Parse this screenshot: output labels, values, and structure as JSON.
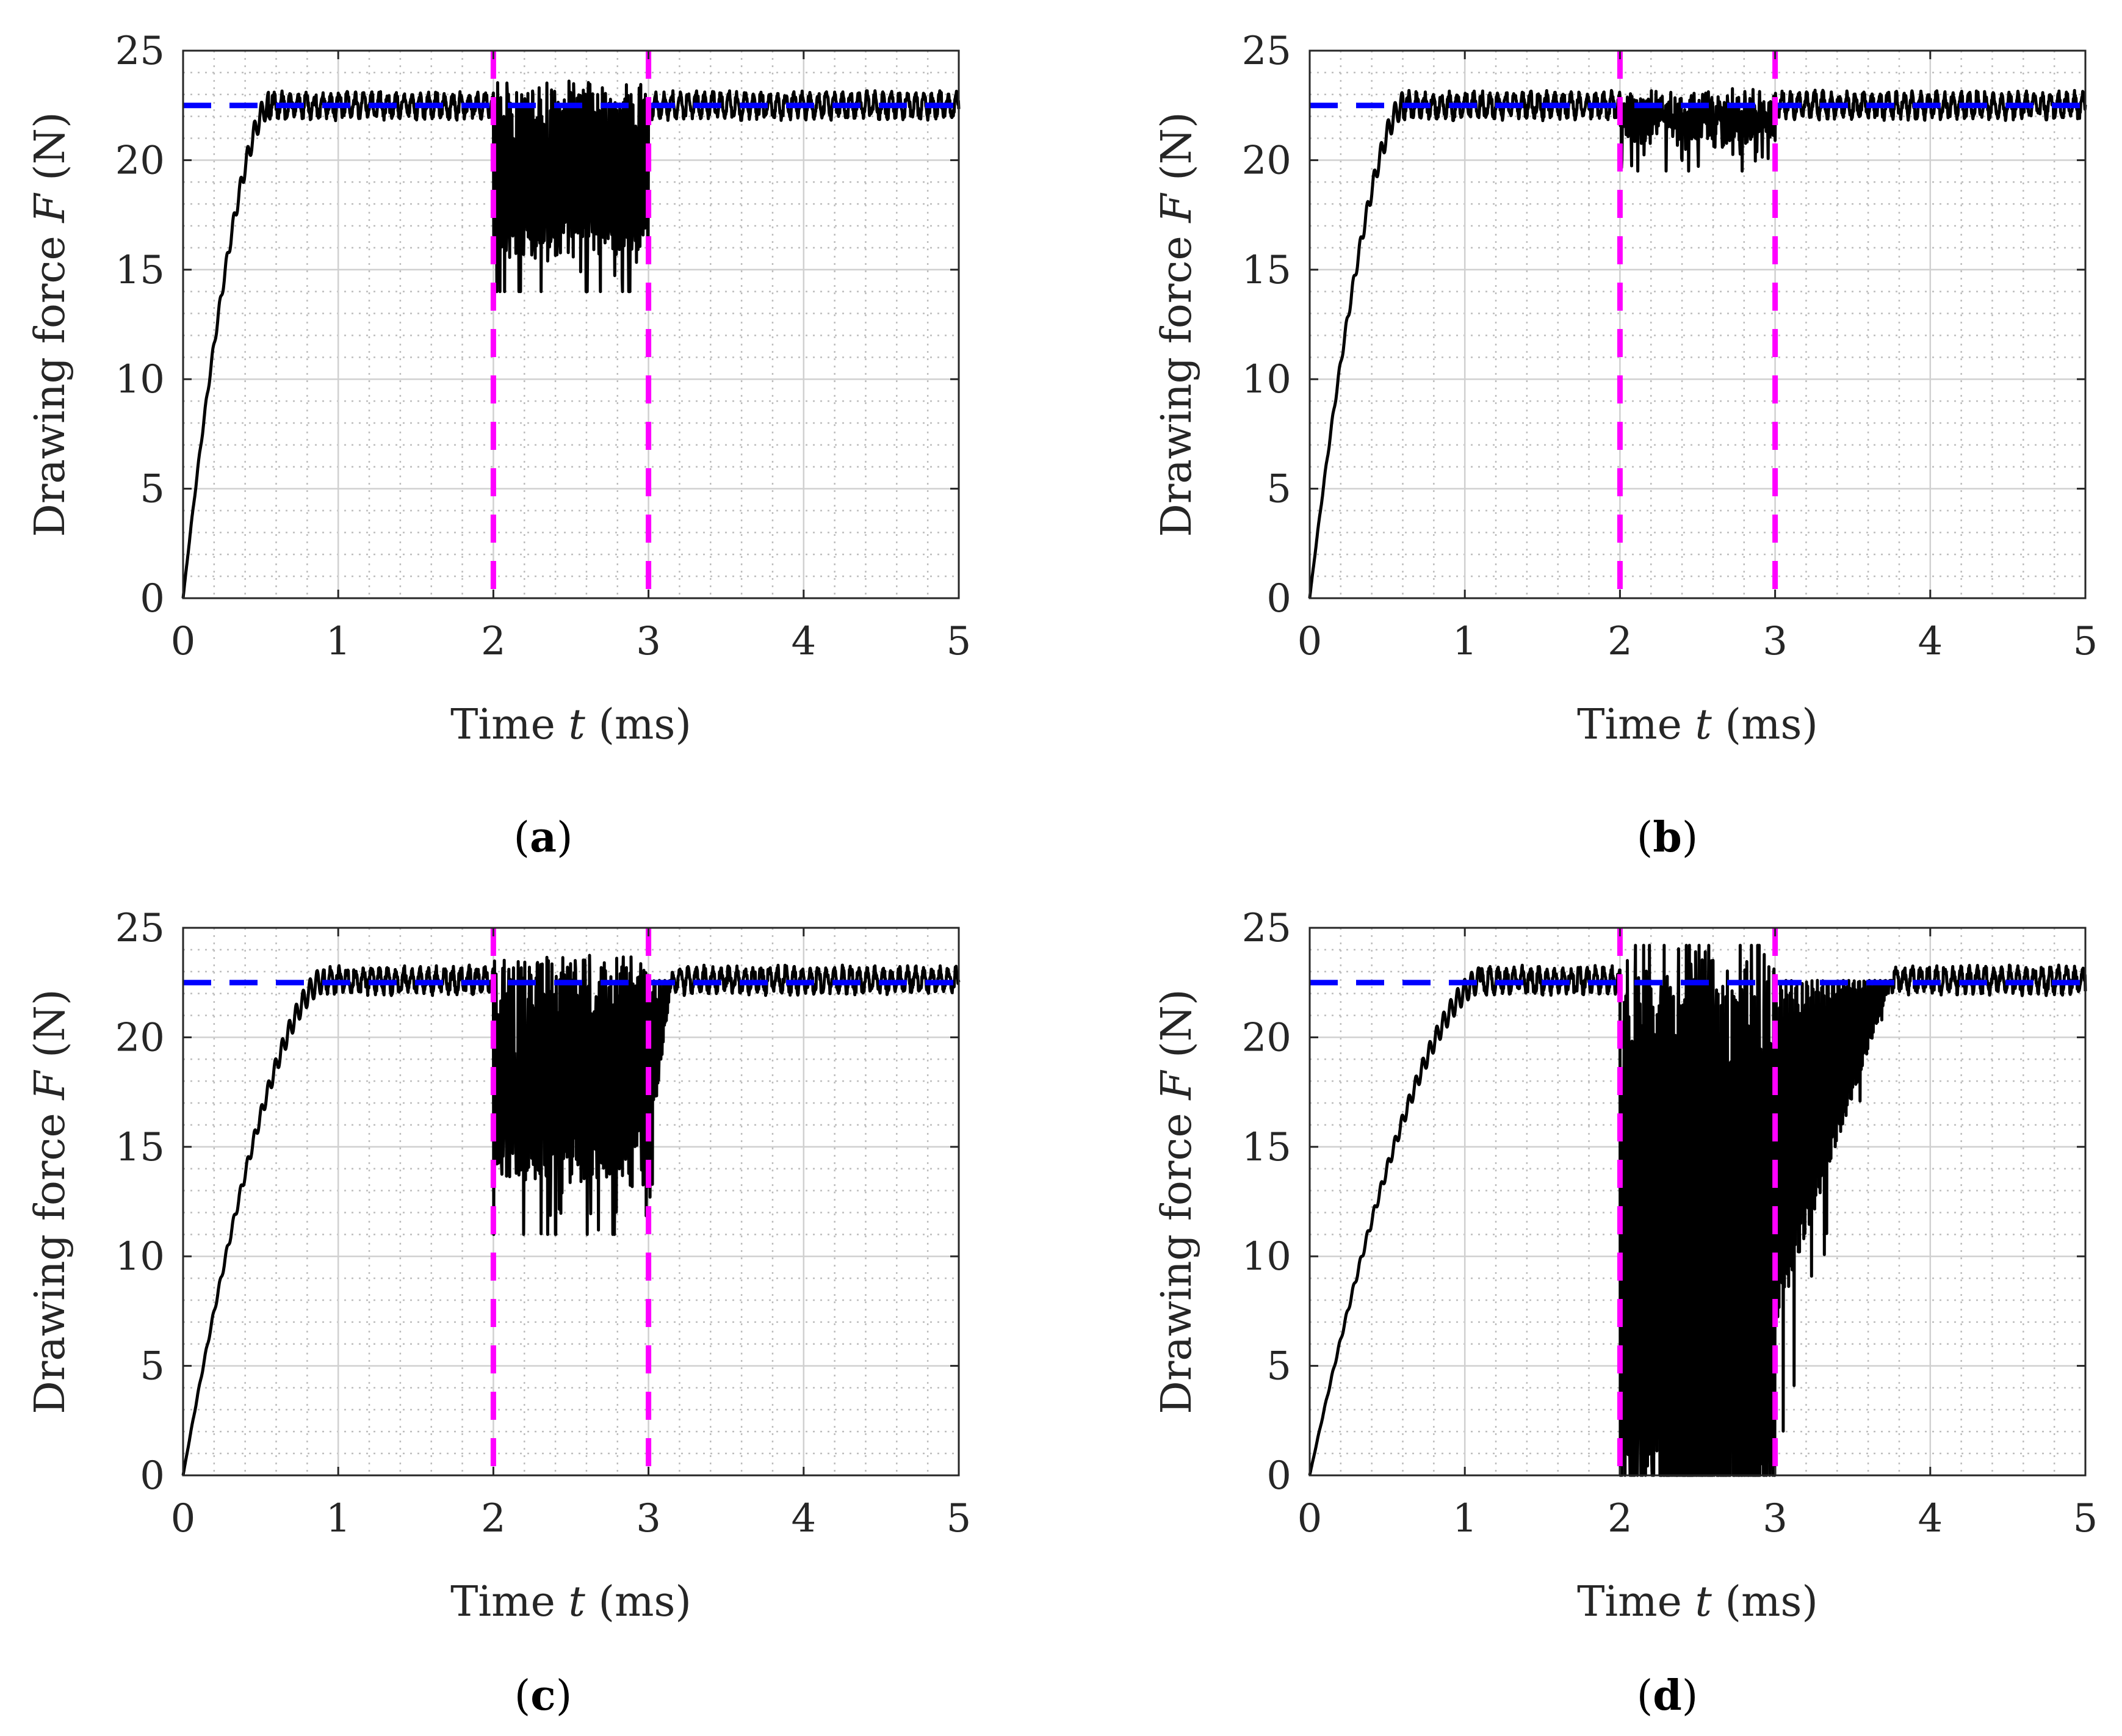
{
  "figure": {
    "colors": {
      "signal": "#000000",
      "reference": "#0000ff",
      "window": "#ff00ff",
      "grid_major": "#d0d0d0",
      "grid_minor": "#bdbdbd",
      "axes": "#262626"
    }
  },
  "chart_data": [
    {
      "id": "a",
      "type": "line",
      "caption_letter": "a",
      "xlabel_prefix": "Time ",
      "xlabel_var": "t",
      "xlabel_unit": " (ms)",
      "ylabel_prefix": "Drawing force ",
      "ylabel_var": "F",
      "ylabel_unit": " (N)",
      "xlim": [
        0,
        5
      ],
      "ylim": [
        0,
        25
      ],
      "x_ticks": [
        "0",
        "1",
        "2",
        "3",
        "4",
        "5"
      ],
      "y_ticks": [
        "0",
        "5",
        "10",
        "15",
        "20",
        "25"
      ],
      "grid": true,
      "reference_force": 22.5,
      "window": [
        2,
        3
      ],
      "series": [
        {
          "name": "drawing force",
          "ramp_end_t": 0.55,
          "steady_mean": 22.5,
          "steady_ripple": 0.5,
          "window_min": 14,
          "window_mean": 19.5,
          "recovery_end_t": 3.0
        }
      ]
    },
    {
      "id": "b",
      "type": "line",
      "caption_letter": "b",
      "xlabel_prefix": "Time ",
      "xlabel_var": "t",
      "xlabel_unit": " (ms)",
      "ylabel_prefix": "Drawing force ",
      "ylabel_var": "F",
      "ylabel_unit": " (N)",
      "xlim": [
        0,
        5
      ],
      "ylim": [
        0,
        25
      ],
      "x_ticks": [
        "0",
        "1",
        "2",
        "3",
        "4",
        "5"
      ],
      "y_ticks": [
        "0",
        "5",
        "10",
        "15",
        "20",
        "25"
      ],
      "grid": true,
      "reference_force": 22.5,
      "window": [
        2,
        3
      ],
      "series": [
        {
          "name": "drawing force",
          "ramp_end_t": 0.6,
          "steady_mean": 22.5,
          "steady_ripple": 0.5,
          "window_min": 19.5,
          "window_mean": 22.0,
          "recovery_end_t": 3.0
        }
      ]
    },
    {
      "id": "c",
      "type": "line",
      "caption_letter": "c",
      "xlabel_prefix": "Time ",
      "xlabel_var": "t",
      "xlabel_unit": " (ms)",
      "ylabel_prefix": "Drawing force ",
      "ylabel_var": "F",
      "ylabel_unit": " (N)",
      "xlim": [
        0,
        5
      ],
      "ylim": [
        0,
        25
      ],
      "x_ticks": [
        "0",
        "1",
        "2",
        "3",
        "4",
        "5"
      ],
      "y_ticks": [
        "0",
        "5",
        "10",
        "15",
        "20",
        "25"
      ],
      "grid": true,
      "reference_force": 22.5,
      "window": [
        2,
        3
      ],
      "series": [
        {
          "name": "drawing force",
          "ramp_end_t": 0.9,
          "steady_mean": 22.6,
          "steady_ripple": 0.5,
          "window_min": 11,
          "window_mean": 18.5,
          "recovery_end_t": 3.15
        }
      ]
    },
    {
      "id": "d",
      "type": "line",
      "caption_letter": "d",
      "xlabel_prefix": "Time ",
      "xlabel_var": "t",
      "xlabel_unit": " (ms)",
      "ylabel_prefix": "Drawing force ",
      "ylabel_var": "F",
      "ylabel_unit": " (N)",
      "xlim": [
        0,
        5
      ],
      "ylim": [
        0,
        25
      ],
      "x_ticks": [
        "0",
        "1",
        "2",
        "3",
        "4",
        "5"
      ],
      "y_ticks": [
        "0",
        "5",
        "10",
        "15",
        "20",
        "25"
      ],
      "grid": true,
      "reference_force": 22.5,
      "window": [
        2,
        3
      ],
      "series": [
        {
          "name": "drawing force",
          "ramp_end_t": 1.1,
          "steady_mean": 22.6,
          "steady_ripple": 0.5,
          "window_min": 0,
          "window_mean": 11,
          "recovery_end_t": 3.75
        }
      ]
    }
  ]
}
